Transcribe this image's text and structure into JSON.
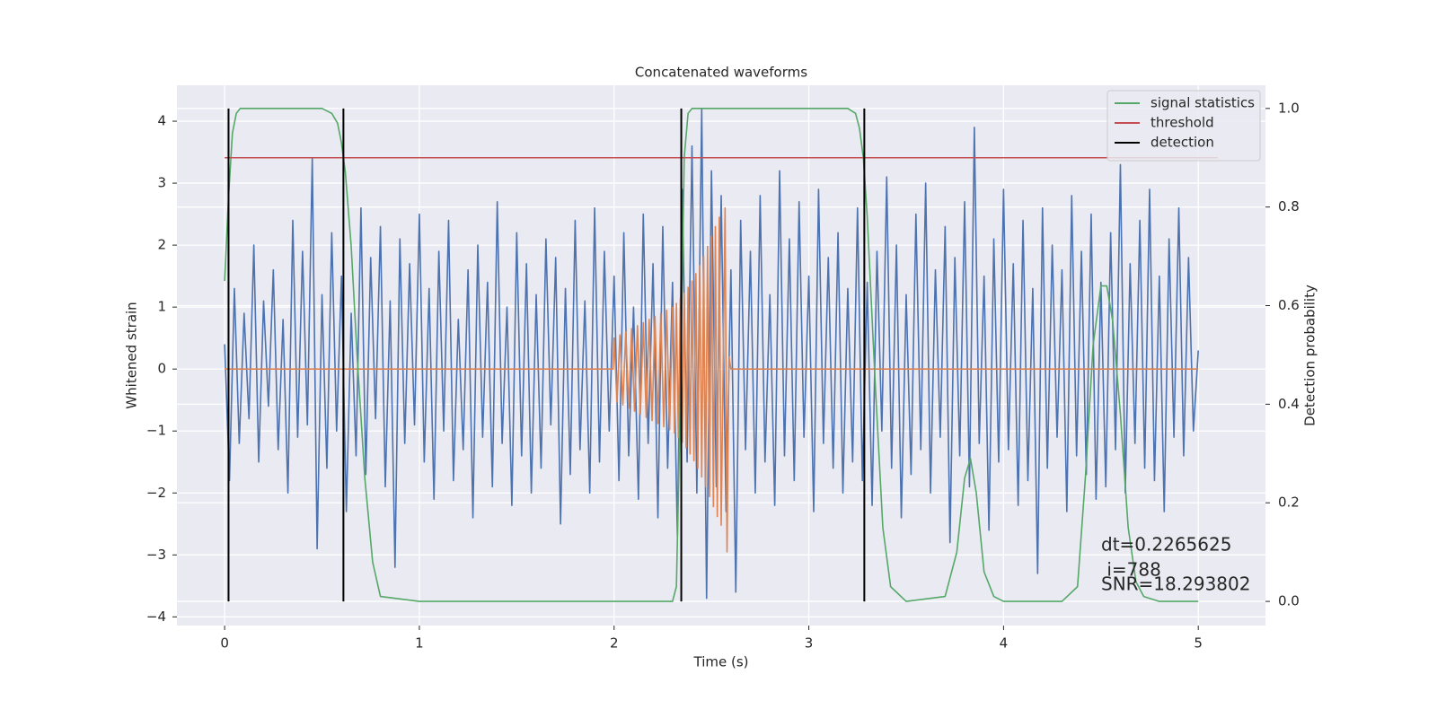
{
  "chart_data": {
    "type": "line",
    "title": "Concatenated waveforms",
    "x_label": "Time (s)",
    "y_label": "Whitened strain",
    "y2_label": "Detection probability",
    "xlim": [
      -0.245,
      5.345
    ],
    "ylim": [
      -4.14,
      4.58
    ],
    "y2lim": [
      -0.049,
      1.047
    ],
    "xticks": [
      0,
      1,
      2,
      3,
      4,
      5
    ],
    "yticks": [
      {
        "value": -4,
        "label": "−4"
      },
      {
        "value": -3,
        "label": "−3"
      },
      {
        "value": -2,
        "label": "−2"
      },
      {
        "value": -1,
        "label": "−1"
      },
      0,
      1,
      2,
      3,
      4
    ],
    "y2ticks": [
      {
        "value": 0,
        "label": "0.0"
      },
      {
        "value": 0.2,
        "label": "0.2"
      },
      {
        "value": 0.4,
        "label": "0.4"
      },
      {
        "value": 0.6,
        "label": "0.6"
      },
      {
        "value": 0.8,
        "label": "0.8"
      },
      {
        "value": 1,
        "label": "1.0"
      }
    ],
    "grid": true,
    "legend": "upper right",
    "annotation": [
      "dt=0.2265625",
      " i=788",
      "SNR=18.293802"
    ],
    "series": [
      {
        "color": "#4c72b0",
        "x": [
          0,
          0.025,
          0.05,
          0.075,
          0.1,
          0.125,
          0.15,
          0.175,
          0.2,
          0.225,
          0.25,
          0.275,
          0.3,
          0.325,
          0.35,
          0.375,
          0.4,
          0.425,
          0.45,
          0.475,
          0.5,
          0.525,
          0.55,
          0.575,
          0.6,
          0.625,
          0.65,
          0.675,
          0.7,
          0.725,
          0.75,
          0.775,
          0.8,
          0.825,
          0.85,
          0.875,
          0.9,
          0.925,
          0.95,
          0.975,
          1,
          1.025,
          1.05,
          1.075,
          1.1,
          1.125,
          1.15,
          1.175,
          1.2,
          1.225,
          1.25,
          1.275,
          1.3,
          1.325,
          1.35,
          1.375,
          1.4,
          1.425,
          1.45,
          1.475,
          1.5,
          1.525,
          1.55,
          1.575,
          1.6,
          1.625,
          1.65,
          1.675,
          1.7,
          1.725,
          1.75,
          1.775,
          1.8,
          1.825,
          1.85,
          1.875,
          1.9,
          1.925,
          1.95,
          1.975,
          2,
          2.025,
          2.05,
          2.075,
          2.1,
          2.125,
          2.15,
          2.175,
          2.2,
          2.225,
          2.25,
          2.275,
          2.3,
          2.325,
          2.35,
          2.375,
          2.4,
          2.425,
          2.45,
          2.475,
          2.5,
          2.525,
          2.55,
          2.575,
          2.6,
          2.625,
          2.65,
          2.675,
          2.7,
          2.725,
          2.75,
          2.775,
          2.8,
          2.825,
          2.85,
          2.875,
          2.9,
          2.925,
          2.95,
          2.975,
          3,
          3.025,
          3.05,
          3.075,
          3.1,
          3.125,
          3.15,
          3.175,
          3.2,
          3.225,
          3.25,
          3.275,
          3.3,
          3.325,
          3.35,
          3.375,
          3.4,
          3.425,
          3.45,
          3.475,
          3.5,
          3.525,
          3.55,
          3.575,
          3.6,
          3.625,
          3.65,
          3.675,
          3.7,
          3.725,
          3.75,
          3.775,
          3.8,
          3.825,
          3.85,
          3.875,
          3.9,
          3.925,
          3.95,
          3.975,
          4,
          4.025,
          4.05,
          4.075,
          4.1,
          4.125,
          4.15,
          4.175,
          4.2,
          4.225,
          4.25,
          4.275,
          4.3,
          4.325,
          4.35,
          4.375,
          4.4,
          4.425,
          4.45,
          4.475,
          4.5,
          4.525,
          4.55,
          4.575,
          4.6,
          4.625,
          4.65,
          4.675,
          4.7,
          4.725,
          4.75,
          4.775,
          4.8,
          4.825,
          4.85,
          4.875,
          4.9,
          4.925,
          4.95,
          4.975,
          5
        ],
        "values": [
          0.4,
          -1.8,
          1.3,
          -1.2,
          0.9,
          -0.8,
          2.0,
          -1.5,
          1.1,
          -0.6,
          1.6,
          -1.3,
          0.8,
          -2.0,
          2.4,
          -1.1,
          1.9,
          -0.9,
          3.4,
          -2.9,
          1.2,
          -1.6,
          2.2,
          -1.0,
          1.5,
          -2.3,
          0.9,
          -1.4,
          2.6,
          -1.7,
          1.8,
          -0.8,
          2.3,
          -1.9,
          1.1,
          -3.2,
          2.1,
          -1.2,
          1.7,
          -0.9,
          2.5,
          -1.5,
          1.3,
          -2.1,
          1.9,
          -1.0,
          2.4,
          -1.8,
          0.8,
          -1.3,
          1.6,
          -2.4,
          2.0,
          -1.1,
          1.4,
          -1.9,
          2.7,
          -1.2,
          1.0,
          -2.2,
          2.2,
          -1.4,
          1.7,
          -2.0,
          1.2,
          -1.6,
          2.1,
          -0.9,
          1.8,
          -2.5,
          1.3,
          -1.7,
          2.4,
          -1.3,
          1.1,
          -2.0,
          2.6,
          -1.5,
          1.9,
          -1.0,
          1.5,
          -1.8,
          2.2,
          -1.4,
          1.0,
          -2.1,
          2.5,
          -1.2,
          1.7,
          -2.4,
          2.3,
          -1.6,
          1.4,
          -2.7,
          2.9,
          -1.5,
          3.6,
          -2.0,
          4.2,
          -3.7,
          3.2,
          -1.9,
          2.8,
          -2.3,
          1.6,
          -3.6,
          2.4,
          -1.3,
          1.9,
          -2.0,
          2.8,
          -1.5,
          1.2,
          -2.2,
          3.2,
          -1.4,
          2.1,
          -1.8,
          2.7,
          -1.1,
          1.5,
          -2.3,
          2.9,
          -1.2,
          1.8,
          -1.6,
          2.2,
          -2.0,
          1.3,
          -1.5,
          2.6,
          -1.8,
          1.4,
          -2.2,
          1.9,
          -1.0,
          3.1,
          -1.6,
          2.0,
          -2.4,
          1.2,
          -1.7,
          2.5,
          -1.3,
          3.0,
          -2.0,
          1.6,
          -1.1,
          2.3,
          -2.8,
          1.8,
          -1.4,
          2.7,
          -1.9,
          3.9,
          -1.2,
          1.5,
          -2.6,
          2.1,
          -1.5,
          2.9,
          -1.3,
          1.7,
          -2.2,
          2.4,
          -1.8,
          1.3,
          -3.3,
          2.6,
          -1.6,
          2.0,
          -1.1,
          1.6,
          -2.3,
          2.8,
          -1.4,
          1.9,
          -1.7,
          2.5,
          -2.1,
          1.4,
          -1.9,
          2.2,
          -1.3,
          3.3,
          -2.0,
          1.7,
          -1.2,
          2.4,
          -1.6,
          2.9,
          -1.8,
          1.5,
          -2.3,
          2.1,
          -1.1,
          2.6,
          -1.4,
          1.8,
          -1.0,
          0.3
        ]
      },
      {
        "color": "#dd8452",
        "x": [
          0,
          1.995,
          2.0,
          2.015,
          2.03,
          2.045,
          2.06,
          2.075,
          2.09,
          2.105,
          2.12,
          2.135,
          2.15,
          2.165,
          2.18,
          2.195,
          2.21,
          2.225,
          2.24,
          2.255,
          2.27,
          2.285,
          2.3,
          2.31,
          2.32,
          2.33,
          2.34,
          2.35,
          2.36,
          2.37,
          2.38,
          2.39,
          2.4,
          2.41,
          2.42,
          2.43,
          2.44,
          2.45,
          2.46,
          2.47,
          2.48,
          2.49,
          2.5,
          2.51,
          2.52,
          2.53,
          2.54,
          2.55,
          2.57,
          2.58,
          2.59,
          2.6,
          5.0
        ],
        "values": [
          0,
          0,
          0.5,
          -0.53,
          0.55,
          -0.58,
          0.6,
          -0.63,
          0.65,
          -0.68,
          0.7,
          -0.73,
          0.75,
          -0.78,
          0.8,
          -0.83,
          0.85,
          -0.88,
          0.9,
          -0.93,
          0.95,
          -0.98,
          1.0,
          -1.03,
          1.06,
          -1.1,
          1.14,
          -1.18,
          1.22,
          -1.27,
          1.32,
          -1.37,
          1.42,
          -1.48,
          1.54,
          -1.6,
          1.67,
          -1.74,
          1.82,
          -1.9,
          1.98,
          -2.06,
          2.14,
          -2.22,
          2.3,
          -2.38,
          2.45,
          -2.52,
          2.6,
          -2.95,
          0.2,
          0,
          0
        ]
      },
      {
        "name": "signal statistics",
        "color": "#55a868",
        "axis": "y2",
        "x": [
          0,
          0.02,
          0.04,
          0.06,
          0.08,
          0.1,
          0.3,
          0.5,
          0.55,
          0.58,
          0.6,
          0.62,
          0.65,
          0.68,
          0.72,
          0.76,
          0.8,
          1.0,
          1.5,
          2.0,
          2.3,
          2.32,
          2.34,
          2.36,
          2.38,
          2.4,
          2.8,
          3.2,
          3.24,
          3.26,
          3.28,
          3.3,
          3.34,
          3.38,
          3.42,
          3.5,
          3.7,
          3.76,
          3.8,
          3.83,
          3.86,
          3.9,
          3.95,
          4.0,
          4.3,
          4.38,
          4.42,
          4.46,
          4.5,
          4.53,
          4.56,
          4.6,
          4.64,
          4.68,
          4.72,
          4.8,
          5.0
        ],
        "values": [
          0.65,
          0.82,
          0.95,
          0.99,
          1.0,
          1.0,
          1.0,
          1.0,
          0.99,
          0.97,
          0.93,
          0.87,
          0.72,
          0.5,
          0.25,
          0.08,
          0.01,
          0.0,
          0.0,
          0.0,
          0.0,
          0.03,
          0.4,
          0.9,
          0.99,
          1.0,
          1.0,
          1.0,
          0.99,
          0.96,
          0.9,
          0.78,
          0.45,
          0.15,
          0.03,
          0.0,
          0.01,
          0.1,
          0.25,
          0.29,
          0.22,
          0.06,
          0.01,
          0.0,
          0.0,
          0.03,
          0.25,
          0.52,
          0.64,
          0.64,
          0.57,
          0.38,
          0.15,
          0.04,
          0.01,
          0.0,
          0.0
        ]
      },
      {
        "name": "threshold",
        "color": "#c44e52",
        "axis": "y2",
        "x": [
          0,
          5.1
        ],
        "values": [
          0.9,
          0.9
        ]
      },
      {
        "name": "detection",
        "color": "#000000",
        "axis": "y2",
        "kind": "vline",
        "x": [
          0.02,
          0.61,
          2.345,
          3.285
        ],
        "span": [
          0,
          1
        ]
      }
    ]
  }
}
